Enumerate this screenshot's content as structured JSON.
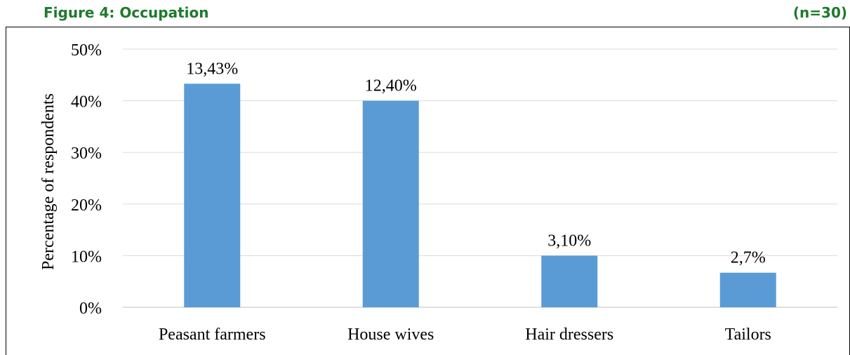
{
  "figure": {
    "title": "Figure 4: Occupation",
    "sample_size": "(n=30)"
  },
  "colors": {
    "bar": "#5b9bd5",
    "title": "#1e7a2e",
    "grid": "#d9d9d9",
    "axis": "#bfbfbf",
    "text": "#000000"
  },
  "chart_data": {
    "type": "bar",
    "title": "Figure 4: Occupation",
    "xlabel": "",
    "ylabel": "Percentage of respondents",
    "ylim": [
      0,
      50
    ],
    "yticks": [
      0,
      10,
      20,
      30,
      40,
      50
    ],
    "ytick_labels": [
      "0%",
      "10%",
      "20%",
      "30%",
      "40%",
      "50%"
    ],
    "grid": true,
    "legend": "none",
    "categories": [
      "Peasant farmers",
      "House wives",
      "Hair dressers",
      "Tailors"
    ],
    "values": [
      43.3,
      40.0,
      10.0,
      6.7
    ],
    "data_labels": [
      "13,43%",
      "12,40%",
      "3,10%",
      "2,7%"
    ]
  }
}
